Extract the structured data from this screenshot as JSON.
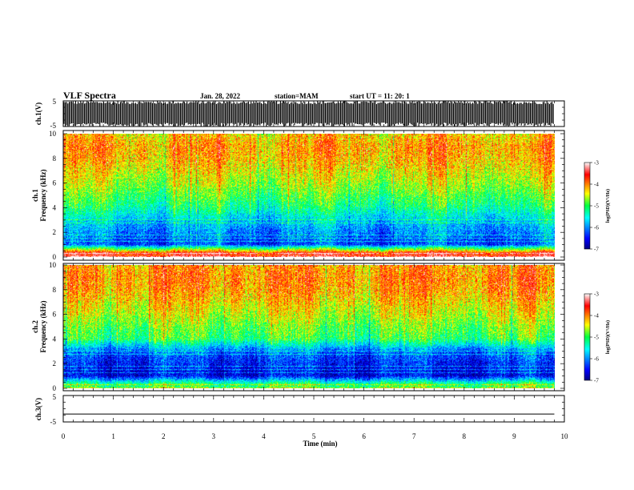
{
  "header": {
    "title": "VLF Spectra",
    "date": "Jan. 28, 2022",
    "station": "station=MAM",
    "start": "start UT =  11: 20: 1"
  },
  "chart_data": [
    {
      "type": "line",
      "panel": "ch1-waveform",
      "ylabel": "ch.1(V)",
      "ylim": [
        -5,
        5
      ],
      "yticks": [
        "5",
        "-5"
      ],
      "description_values": {
        "fill": "dense black vertical bursts spanning nearly full range"
      }
    },
    {
      "type": "heatmap",
      "panel": "ch1-spectrogram",
      "ylabel_line1": "ch.1",
      "ylabel_line2": "Frequency (kHz)",
      "ylim": [
        0,
        10
      ],
      "yticks": [
        "0",
        "2",
        "4",
        "6",
        "8",
        "10"
      ],
      "colorbar": {
        "label": "log(PSD)(V²/Hz)",
        "range": [
          -7,
          -3
        ],
        "ticks": [
          "-3",
          "-4",
          "-5",
          "-6",
          "-7"
        ]
      },
      "band_levels_by_khz": [
        {
          "f": 0.3,
          "level": -3.6
        },
        {
          "f": 1,
          "level": -6.3
        },
        {
          "f": 2,
          "level": -6.0
        },
        {
          "f": 3,
          "level": -5.7
        },
        {
          "f": 4,
          "level": -5.2
        },
        {
          "f": 5,
          "level": -4.9
        },
        {
          "f": 6,
          "level": -4.6
        },
        {
          "f": 7,
          "level": -4.4
        },
        {
          "f": 8,
          "level": -4.2
        },
        {
          "f": 9,
          "level": -4.1
        },
        {
          "f": 10,
          "level": -4.3
        }
      ]
    },
    {
      "type": "heatmap",
      "panel": "ch2-spectrogram",
      "ylabel_line1": "ch.2",
      "ylabel_line2": "Frequency (kHz)",
      "ylim": [
        0,
        10
      ],
      "yticks": [
        "0",
        "2",
        "4",
        "6",
        "8",
        "10"
      ],
      "colorbar": {
        "label": "log(PSD)(V²/Hz)",
        "range": [
          -7,
          -3
        ],
        "ticks": [
          "-3",
          "-4",
          "-5",
          "-6",
          "-7"
        ]
      },
      "band_levels_by_khz": [
        {
          "f": 0.3,
          "level": -5.0
        },
        {
          "f": 1,
          "level": -6.6
        },
        {
          "f": 2,
          "level": -6.4
        },
        {
          "f": 3,
          "level": -6.1
        },
        {
          "f": 4,
          "level": -5.0
        },
        {
          "f": 5,
          "level": -4.8
        },
        {
          "f": 6,
          "level": -4.5
        },
        {
          "f": 7,
          "level": -4.3
        },
        {
          "f": 8,
          "level": -4.1
        },
        {
          "f": 9,
          "level": -4.0
        },
        {
          "f": 10,
          "level": -4.1
        }
      ]
    },
    {
      "type": "line",
      "panel": "ch3-waveform",
      "ylabel": "ch.3(V)",
      "ylim": [
        -5,
        5
      ],
      "yticks": [
        "5",
        "-5"
      ],
      "x": [
        0,
        10
      ],
      "y": [
        -2,
        -2
      ]
    }
  ],
  "xaxis": {
    "label": "Time (min)",
    "ticks": [
      "0",
      "1",
      "2",
      "3",
      "4",
      "5",
      "6",
      "7",
      "8",
      "9",
      "10"
    ],
    "xlim": [
      0,
      10
    ],
    "data_end_min": 9.8
  }
}
